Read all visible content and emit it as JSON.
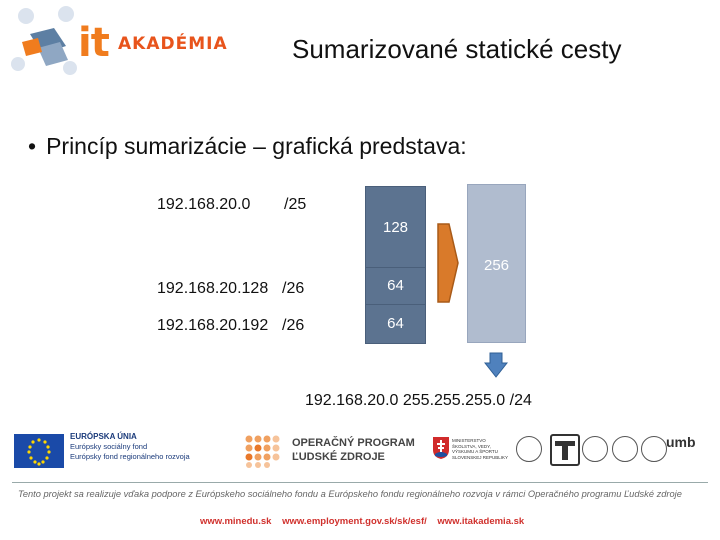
{
  "logo": {
    "it": "it",
    "akademia": "AKADÉMIA"
  },
  "slide": {
    "title": "Sumarizované statické cesty",
    "bullet": "Princíp sumarizácie – grafická predstava:"
  },
  "networks": [
    {
      "address": "192.168.20.0",
      "prefix": "/25"
    },
    {
      "address": "192.168.20.128",
      "prefix": "/26"
    },
    {
      "address": "192.168.20.192",
      "prefix": "/26"
    }
  ],
  "blocks": {
    "b1": "128",
    "b2": "64",
    "b3": "64",
    "total": "256"
  },
  "result": "192.168.20.0 255.255.255.0  /24",
  "colors": {
    "box": "#5c7390",
    "big": "#b0bccf",
    "arrow": "#d97a2a",
    "down": "#4f81bd"
  },
  "footer": {
    "eu": {
      "line1": "EURÓPSKA ÚNIA",
      "line2": "Európsky sociálny fond",
      "line3": "Európsky fond regionálneho rozvoja"
    },
    "opz": {
      "line1": "OPERAČNÝ PROGRAM",
      "line2": "ĽUDSKÉ ZDROJE"
    },
    "ministry": {
      "line1": "MINISTERSTVO",
      "line2": "ŠKOLSTVA, VEDY,",
      "line3": "VÝSKUMU A ŠPORTU",
      "line4": "SLOVENSKEJ REPUBLIKY"
    },
    "umb": "umb",
    "note": "Tento projekt sa realizuje vďaka podpore z Európskeho sociálneho fondu a Európskeho fondu regionálneho rozvoja v rámci Operačného programu Ľudské zdroje",
    "links": [
      "www.minedu.sk",
      "www.employment.gov.sk/sk/esf/",
      "www.itakademia.sk"
    ]
  }
}
